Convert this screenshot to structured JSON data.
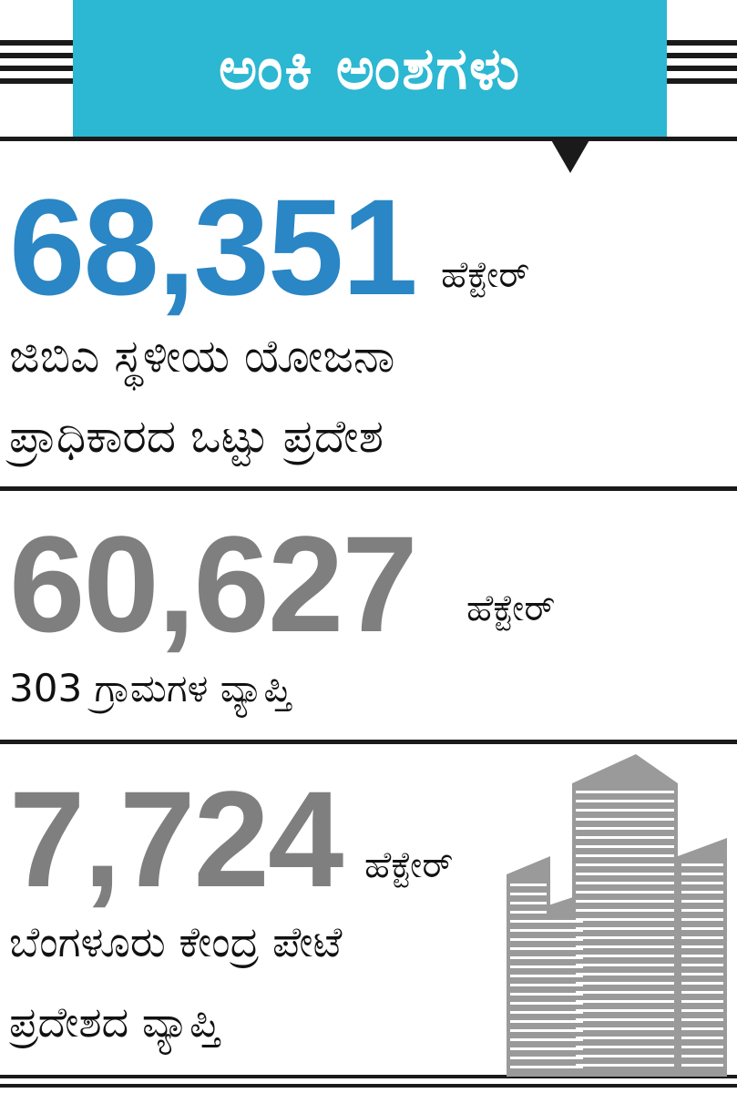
{
  "header": {
    "title": "ಅಂಕಿ ಅಂಶಗಳು",
    "color": "#2cb7d2"
  },
  "stats": [
    {
      "value": "68,351",
      "unit": "ಹೆಕ್ಟೇರ್",
      "description_lines": [
        "ಜಿಬಿಎ ಸ್ಥಳೀಯ ಯೋಜನಾ",
        "ಪ್ರಾಧಿಕಾರದ ಒಟ್ಟು ಪ್ರದೇಶ"
      ],
      "color": "#2a86c4"
    },
    {
      "value": "60,627",
      "unit": "ಹೆಕ್ಟೇರ್",
      "description_lines": [
        "303 ಗ್ರಾಮಗಳ ವ್ಯಾಪ್ತಿ"
      ],
      "color": "#7f7f7f"
    },
    {
      "value": "7,724",
      "unit": "ಹೆಕ್ಟೇರ್",
      "description_lines": [
        "ಬೆಂಗಳೂರು ಕೇಂದ್ರ ಪೇಟೆ",
        "ಪ್ರದೇಶದ ವ್ಯಾಪ್ತಿ"
      ],
      "color": "#7f7f7f"
    }
  ],
  "illustration": {
    "icon": "skyscraper-icon",
    "color": "#9a9a9a"
  }
}
